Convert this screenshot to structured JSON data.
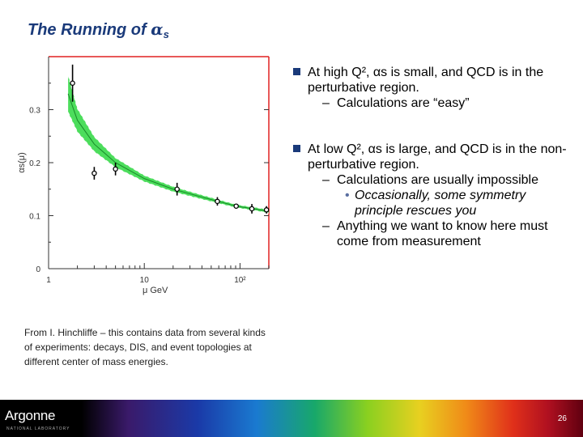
{
  "slide": {
    "title_prefix": "The Running of ",
    "title_alpha": "α",
    "title_sub": "s",
    "page_number": "26"
  },
  "bullets": {
    "high": {
      "line": "At high Q², αs is small, and QCD is in the perturbative region.",
      "sub": "Calculations are “easy”"
    },
    "low": {
      "line": "At low Q², αs is large, and QCD is in the non-perturbative region.",
      "sub1": "Calculations are usually impossible",
      "subsub": "Occasionally, some symmetry principle rescues you",
      "sub2": "Anything we want to know here must come from measurement"
    }
  },
  "caption": "From I. Hinchliffe – this contains data from several kinds of experiments: decays, DIS, and event topologies at different center of mass energies.",
  "footer": {
    "logo": "Argonne",
    "logo_sub": "NATIONAL LABORATORY"
  },
  "colors": {
    "title": "#1a3a7a",
    "band": "#39d94a",
    "band_dash": "#ffffff",
    "frame_red": "#e02020"
  },
  "chart_data": {
    "type": "scatter",
    "xscale": "log",
    "xlim": [
      1,
      200
    ],
    "ylim": [
      0,
      0.4
    ],
    "xlabel": "μ GeV",
    "ylabel": "αs(μ)",
    "x_ticks": [
      "1",
      "10",
      "10²"
    ],
    "y_ticks": [
      "0",
      "0.1",
      "0.2",
      "0.3"
    ],
    "points": [
      {
        "x": 1.78,
        "y": 0.35,
        "err": 0.035
      },
      {
        "x": 3.0,
        "y": 0.18,
        "err": 0.012
      },
      {
        "x": 5.0,
        "y": 0.188,
        "err": 0.012
      },
      {
        "x": 22,
        "y": 0.15,
        "err": 0.012
      },
      {
        "x": 58,
        "y": 0.127,
        "err": 0.008
      },
      {
        "x": 91.2,
        "y": 0.118,
        "err": 0.004
      },
      {
        "x": 133,
        "y": 0.113,
        "err": 0.009
      },
      {
        "x": 189,
        "y": 0.111,
        "err": 0.007
      }
    ],
    "band": {
      "x": [
        1.6,
        2,
        3,
        5,
        10,
        20,
        40,
        91.2,
        150,
        200
      ],
      "center": [
        0.33,
        0.28,
        0.235,
        0.2,
        0.17,
        0.15,
        0.135,
        0.118,
        0.112,
        0.108
      ],
      "halfwidth": [
        0.035,
        0.022,
        0.014,
        0.009,
        0.006,
        0.005,
        0.004,
        0.003,
        0.003,
        0.003
      ]
    }
  }
}
